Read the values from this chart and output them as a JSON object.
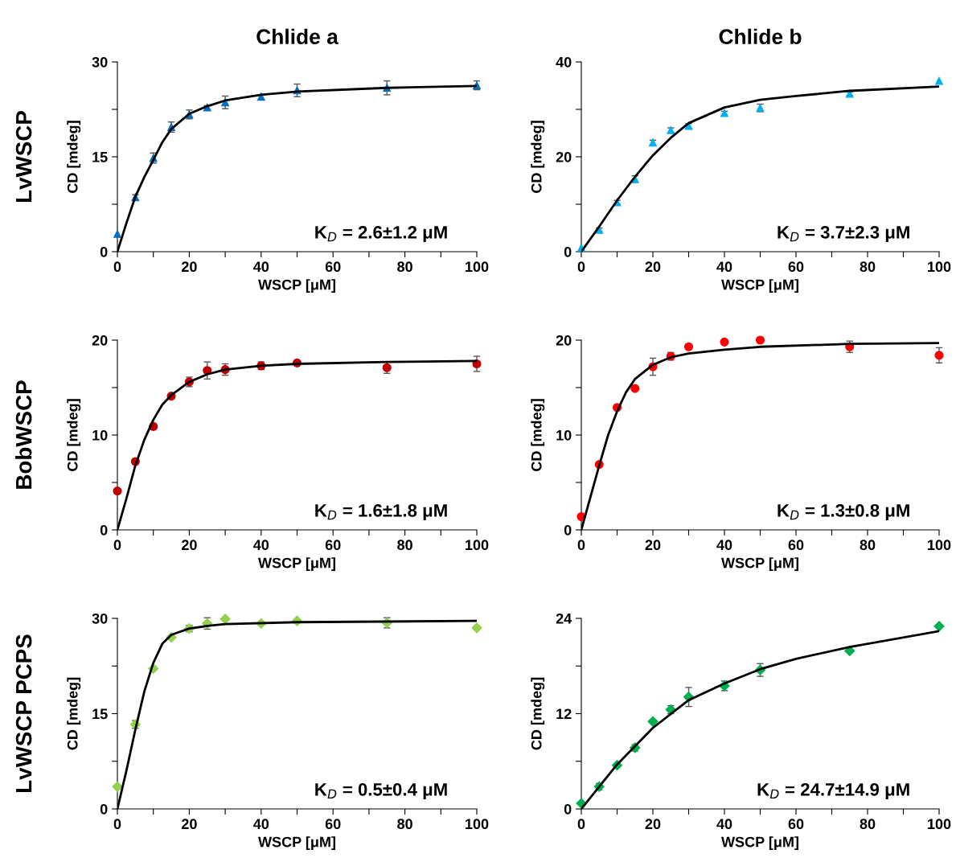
{
  "chart_data": [
    {
      "type": "scatter",
      "title": "Chlide a",
      "xlabel": "WSCP [μM]",
      "ylabel": "CD [mdeg]",
      "annotations": [
        "K$_{D}$ = 2.6±1.2 μM",
        "LvWSCP"
      ],
      "xlim": [
        0,
        100
      ],
      "ylim": [
        0,
        30
      ],
      "xticks": [
        0,
        {
          "value": 10,
          "label": null
        },
        20,
        {
          "value": 30,
          "label": null
        },
        40,
        {
          "value": 50,
          "label": null
        },
        60,
        {
          "value": 70,
          "label": null
        },
        80,
        {
          "value": 90,
          "label": null
        },
        100
      ],
      "yticks": [
        0,
        {
          "value": 7.5,
          "label": null
        },
        15,
        {
          "value": 22.5,
          "label": null
        },
        30
      ],
      "grid": false,
      "legend": false,
      "series": [
        {
          "marker": "triangle",
          "color": "#0070c0",
          "x": [
            0,
            5,
            10,
            15,
            20,
            25,
            30,
            40,
            50,
            75,
            100
          ],
          "values": [
            2.8,
            8.6,
            14.8,
            19.7,
            21.7,
            22.8,
            23.6,
            24.5,
            25.5,
            25.9,
            26.3
          ],
          "errors": [
            null,
            0.4,
            0.8,
            0.8,
            0.7,
            0.3,
            1.0,
            null,
            1.0,
            1.1,
            0.7
          ]
        },
        {
          "type": "line",
          "marker": "none",
          "color": "#000000",
          "x": [
            0,
            2.5,
            5,
            7.5,
            10,
            12.5,
            15,
            20,
            25,
            30,
            40,
            50,
            75,
            100
          ],
          "values": [
            0,
            4.5,
            8.7,
            11.8,
            14.5,
            17.3,
            19.4,
            21.8,
            23.0,
            23.9,
            24.8,
            25.3,
            25.9,
            26.2
          ]
        }
      ]
    },
    {
      "type": "scatter",
      "title": "Chlide b",
      "xlabel": "WSCP [μM]",
      "ylabel": "CD [mdeg]",
      "annotations": [
        "K$_{D}$ = 3.7±2.3 μM"
      ],
      "xlim": [
        0,
        100
      ],
      "ylim": [
        0,
        40
      ],
      "xticks": [
        0,
        {
          "value": 10,
          "label": null
        },
        20,
        {
          "value": 30,
          "label": null
        },
        40,
        {
          "value": 50,
          "label": null
        },
        60,
        {
          "value": 70,
          "label": null
        },
        80,
        {
          "value": 90,
          "label": null
        },
        100
      ],
      "yticks": [
        0,
        {
          "value": 10,
          "label": null
        },
        20,
        {
          "value": 30,
          "label": null
        },
        40
      ],
      "grid": false,
      "legend": false,
      "series": [
        {
          "marker": "triangle",
          "color": "#00b0f0",
          "x": [
            0,
            5,
            10,
            15,
            20,
            25,
            30,
            40,
            50,
            75,
            100
          ],
          "values": [
            0.8,
            4.6,
            10.4,
            15.3,
            23.0,
            25.6,
            26.5,
            29.2,
            30.3,
            33.3,
            36.0
          ],
          "errors": [
            null,
            0.4,
            0.4,
            0.7,
            0.5,
            0.5,
            0.5,
            0.4,
            0.8,
            0.4,
            null
          ]
        },
        {
          "type": "line",
          "marker": "none",
          "color": "#000000",
          "x": [
            0,
            5,
            10,
            15,
            20,
            25,
            30,
            40,
            50,
            60,
            75,
            100
          ],
          "values": [
            0,
            5.3,
            10.8,
            15.8,
            20.3,
            24.0,
            27.1,
            30.4,
            32.0,
            32.8,
            33.9,
            34.8
          ]
        }
      ]
    },
    {
      "type": "scatter",
      "xlabel": "WSCP [μM]",
      "ylabel": "CD [mdeg]",
      "annotations": [
        "K$_{D}$ = 1.6±1.8 μM",
        "BobWSCP"
      ],
      "xlim": [
        0,
        100
      ],
      "ylim": [
        0,
        20
      ],
      "xticks": [
        0,
        {
          "value": 10,
          "label": null
        },
        20,
        {
          "value": 30,
          "label": null
        },
        40,
        {
          "value": 50,
          "label": null
        },
        60,
        {
          "value": 70,
          "label": null
        },
        80,
        {
          "value": 90,
          "label": null
        },
        100
      ],
      "yticks": [
        0,
        {
          "value": 5,
          "label": null
        },
        10,
        {
          "value": 15,
          "label": null
        },
        20
      ],
      "grid": false,
      "legend": false,
      "series": [
        {
          "marker": "circle",
          "color": "#c00000",
          "x": [
            0,
            5,
            10,
            15,
            20,
            25,
            30,
            40,
            50,
            75,
            100
          ],
          "values": [
            4.1,
            7.2,
            10.9,
            14.1,
            15.6,
            16.8,
            16.9,
            17.3,
            17.6,
            17.1,
            17.5
          ],
          "errors": [
            null,
            null,
            0.3,
            null,
            0.5,
            0.9,
            0.6,
            0.4,
            null,
            0.6,
            0.8
          ]
        },
        {
          "type": "line",
          "marker": "none",
          "color": "#000000",
          "x": [
            0,
            2.5,
            5,
            7.5,
            10,
            12.5,
            15,
            20,
            25,
            30,
            40,
            50,
            75,
            100
          ],
          "values": [
            0,
            3.3,
            6.8,
            9.5,
            11.6,
            13.2,
            14.2,
            15.6,
            16.4,
            16.9,
            17.3,
            17.5,
            17.7,
            17.8
          ]
        }
      ]
    },
    {
      "type": "scatter",
      "xlabel": "WSCP [μM]",
      "ylabel": "CD [mdeg]",
      "annotations": [
        "K$_{D}$ = 1.3±0.8 μM"
      ],
      "xlim": [
        0,
        100
      ],
      "ylim": [
        0,
        20
      ],
      "xticks": [
        0,
        {
          "value": 10,
          "label": null
        },
        20,
        {
          "value": 30,
          "label": null
        },
        40,
        {
          "value": 50,
          "label": null
        },
        60,
        {
          "value": 70,
          "label": null
        },
        80,
        {
          "value": 90,
          "label": null
        },
        100
      ],
      "yticks": [
        0,
        {
          "value": 5,
          "label": null
        },
        10,
        {
          "value": 15,
          "label": null
        },
        20
      ],
      "grid": false,
      "legend": false,
      "series": [
        {
          "marker": "circle",
          "color": "#ff0000",
          "x": [
            0,
            5,
            10,
            15,
            20,
            25,
            30,
            40,
            50,
            75,
            100
          ],
          "values": [
            1.4,
            6.9,
            12.9,
            14.9,
            17.2,
            18.3,
            19.3,
            19.8,
            20.0,
            19.3,
            18.4
          ],
          "errors": [
            null,
            null,
            null,
            null,
            0.9,
            0.4,
            null,
            null,
            null,
            0.6,
            0.8
          ]
        },
        {
          "type": "line",
          "marker": "none",
          "color": "#000000",
          "x": [
            0,
            2.5,
            5,
            7.5,
            10,
            12.5,
            15,
            20,
            25,
            30,
            40,
            50,
            75,
            100
          ],
          "values": [
            0,
            3.4,
            6.8,
            10.0,
            12.5,
            14.5,
            15.9,
            17.4,
            18.2,
            18.6,
            19.0,
            19.3,
            19.6,
            19.7
          ]
        }
      ]
    },
    {
      "type": "scatter",
      "xlabel": "WSCP [μM]",
      "ylabel": "CD [mdeg]",
      "annotations": [
        "K$_{D}$ = 0.5±0.4 μM",
        "LvWSCP PCPS"
      ],
      "xlim": [
        0,
        100
      ],
      "ylim": [
        0,
        30
      ],
      "xticks": [
        0,
        {
          "value": 10,
          "label": null
        },
        20,
        {
          "value": 30,
          "label": null
        },
        40,
        {
          "value": 50,
          "label": null
        },
        60,
        {
          "value": 70,
          "label": null
        },
        80,
        {
          "value": 90,
          "label": null
        },
        100
      ],
      "yticks": [
        0,
        {
          "value": 7.5,
          "label": null
        },
        15,
        {
          "value": 22.5,
          "label": null
        },
        30
      ],
      "grid": false,
      "legend": false,
      "series": [
        {
          "marker": "diamond",
          "color": "#92d050",
          "x": [
            0,
            5,
            10,
            15,
            20,
            25,
            30,
            40,
            50,
            75,
            100
          ],
          "values": [
            3.5,
            13.3,
            22.1,
            27.0,
            28.4,
            29.2,
            29.9,
            29.2,
            29.6,
            29.3,
            28.5
          ],
          "errors": [
            null,
            0.6,
            null,
            null,
            0.5,
            0.9,
            null,
            null,
            0.3,
            0.8,
            null
          ]
        },
        {
          "type": "line",
          "marker": "none",
          "color": "#000000",
          "x": [
            0,
            2.5,
            5,
            7.5,
            10,
            12.5,
            15,
            20,
            25,
            30,
            50,
            100
          ],
          "values": [
            0,
            6.0,
            12.5,
            18.5,
            23.0,
            26.0,
            27.4,
            28.4,
            28.8,
            29.1,
            29.4,
            29.6
          ]
        }
      ]
    },
    {
      "type": "scatter",
      "xlabel": "WSCP [μM]",
      "ylabel": "CD [mdeg]",
      "annotations": [
        "K$_{D}$ = 24.7±14.9 μM"
      ],
      "xlim": [
        0,
        100
      ],
      "ylim": [
        0,
        24
      ],
      "xticks": [
        0,
        {
          "value": 10,
          "label": null
        },
        20,
        {
          "value": 30,
          "label": null
        },
        40,
        {
          "value": 50,
          "label": null
        },
        60,
        {
          "value": 70,
          "label": null
        },
        80,
        {
          "value": 90,
          "label": null
        },
        100
      ],
      "yticks": [
        0,
        {
          "value": 6,
          "label": null
        },
        12,
        {
          "value": 18,
          "label": null
        },
        24
      ],
      "grid": false,
      "legend": false,
      "series": [
        {
          "marker": "diamond",
          "color": "#00b050",
          "x": [
            0,
            5,
            10,
            15,
            20,
            25,
            30,
            40,
            50,
            75,
            100
          ],
          "values": [
            0.7,
            2.8,
            5.5,
            7.7,
            11.0,
            12.5,
            14.1,
            15.5,
            17.5,
            19.9,
            23.0
          ],
          "errors": [
            null,
            0.4,
            null,
            0.4,
            null,
            0.5,
            1.2,
            0.6,
            0.8,
            null,
            null
          ]
        },
        {
          "type": "line",
          "marker": "none",
          "color": "#000000",
          "x": [
            0,
            10,
            20,
            30,
            40,
            50,
            60,
            75,
            100
          ],
          "values": [
            0,
            5.6,
            10.2,
            13.7,
            15.8,
            17.6,
            18.9,
            20.4,
            22.4
          ]
        }
      ]
    }
  ]
}
